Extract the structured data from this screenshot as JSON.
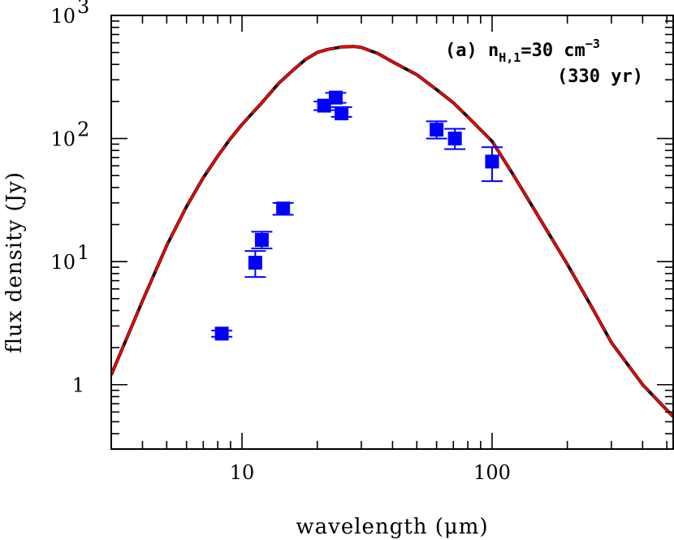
{
  "chart_data": {
    "type": "scatter",
    "xlabel": "wavelength (μm)",
    "ylabel": "flux density (Jy)",
    "xscale": "log",
    "yscale": "log",
    "xlim": [
      3,
      530
    ],
    "ylim": [
      0.3,
      1000
    ],
    "xticks": [
      {
        "value": 10,
        "label": "10"
      },
      {
        "value": 100,
        "label": "100"
      }
    ],
    "yticks": [
      {
        "value": 1,
        "label": "1",
        "sup": ""
      },
      {
        "value": 10,
        "label": "10",
        "sup": "1"
      },
      {
        "value": 100,
        "label": "10",
        "sup": "2"
      },
      {
        "value": 1000,
        "label": "10",
        "sup": "3"
      }
    ],
    "annotation": {
      "line1": "(a) n",
      "line1_sub": "H,1",
      "line1_rest": "=30 cm",
      "line1_sup": "−3",
      "line2": "(330 yr)"
    },
    "model_curve": {
      "colors": {
        "outer": "#111111",
        "inner": "#ff0000"
      },
      "x": [
        3,
        4,
        5,
        6,
        7,
        8,
        9,
        10,
        12,
        14,
        16,
        18,
        20,
        22,
        25,
        28,
        30,
        35,
        40,
        50,
        60,
        70,
        80,
        100,
        120,
        150,
        200,
        250,
        300,
        400,
        530
      ],
      "y": [
        1.2,
        4.8,
        13.5,
        28,
        48,
        72,
        100,
        130,
        195,
        280,
        360,
        440,
        500,
        530,
        555,
        560,
        550,
        490,
        420,
        330,
        250,
        195,
        150,
        95,
        53,
        25,
        9.5,
        4.3,
        2.2,
        1.0,
        0.55
      ]
    },
    "series": [
      {
        "color": "#0000ff",
        "points": [
          {
            "x": 8.3,
            "y": 2.6,
            "ylo": 2.45,
            "yhi": 2.75
          },
          {
            "x": 11.3,
            "y": 9.8,
            "ylo": 7.5,
            "yhi": 12.2
          },
          {
            "x": 12.0,
            "y": 15.0,
            "ylo": 12.8,
            "yhi": 17.5
          },
          {
            "x": 14.6,
            "y": 27.0,
            "ylo": 24.0,
            "yhi": 30.0
          },
          {
            "x": 21.3,
            "y": 185,
            "ylo": 170,
            "yhi": 200
          },
          {
            "x": 23.7,
            "y": 215,
            "ylo": 195,
            "yhi": 235
          },
          {
            "x": 25.0,
            "y": 160,
            "ylo": 150,
            "yhi": 180
          },
          {
            "x": 60,
            "y": 118,
            "ylo": 100,
            "yhi": 138
          },
          {
            "x": 71,
            "y": 100,
            "ylo": 82,
            "yhi": 120
          },
          {
            "x": 100,
            "y": 65,
            "ylo": 45,
            "yhi": 85
          }
        ]
      }
    ]
  }
}
